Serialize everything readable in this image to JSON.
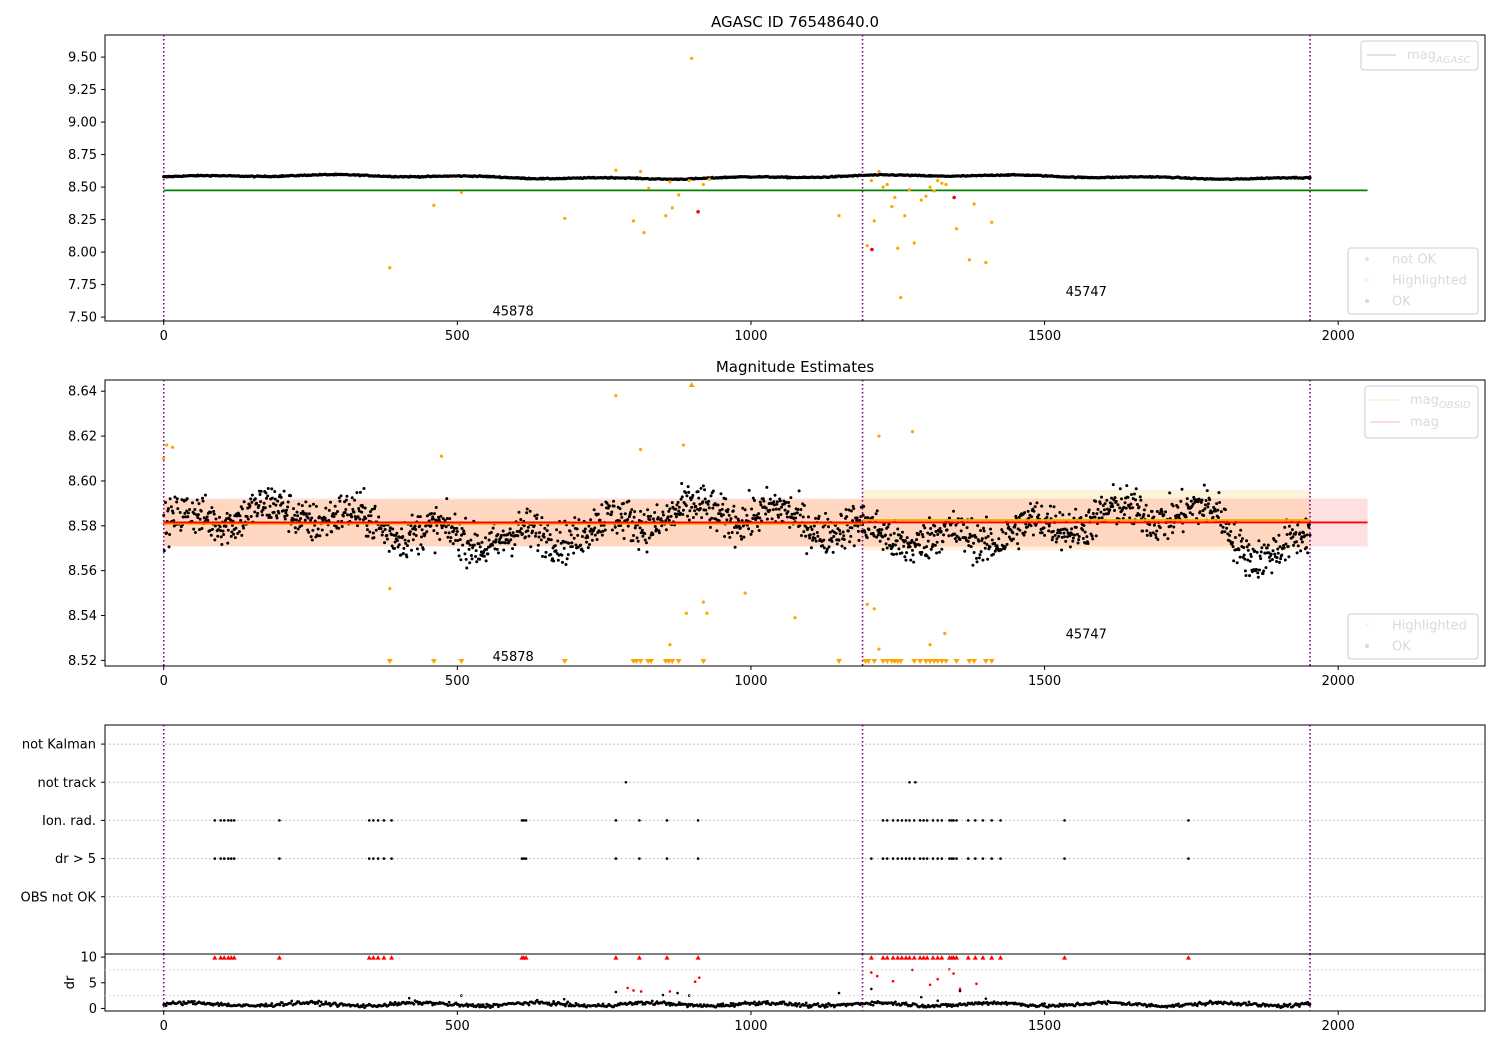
{
  "chart_data": [
    {
      "id": "mag_agasc",
      "type": "scatter",
      "title": "AGASC ID 76548640.0",
      "xlim": [
        -100,
        2250
      ],
      "ylim": [
        7.47,
        9.67
      ],
      "xticks": [
        0,
        500,
        1000,
        1500,
        2000
      ],
      "xtick_labels": [
        "0",
        "500",
        "1000",
        "1500",
        "2000"
      ],
      "yticks": [
        7.5,
        7.75,
        8.0,
        8.25,
        8.5,
        8.75,
        9.0,
        9.25,
        9.5
      ],
      "ytick_labels": [
        "7.50",
        "7.75",
        "8.00",
        "8.25",
        "8.50",
        "8.75",
        "9.00",
        "9.25",
        "9.50"
      ],
      "obsid_boundaries": [
        0,
        1190,
        1952
      ],
      "obsid_labels": [
        {
          "x": 595,
          "y": 7.55,
          "text": "45878"
        },
        {
          "x": 1571,
          "y": 7.7,
          "text": "45747"
        }
      ],
      "mag_agasc": {
        "value": 8.475,
        "x": [
          0,
          2050
        ],
        "color": "#008000",
        "label": "mag",
        "label_sub": "AGASC"
      },
      "legend_upper": [
        {
          "label": "mag",
          "sub": "AGASC",
          "color": "#008000"
        }
      ],
      "legend_lower": [
        {
          "label": "not OK",
          "color": "#ff0000"
        },
        {
          "label": "Highlighted",
          "color": "#ffa500"
        },
        {
          "label": "OK",
          "color": "#000000"
        }
      ],
      "ok_series": {
        "mean": 8.578,
        "noise": 0.01,
        "color": "#000000"
      },
      "highlighted": [
        [
          385,
          7.88
        ],
        [
          460,
          8.36
        ],
        [
          507,
          8.46
        ],
        [
          683,
          8.26
        ],
        [
          770,
          8.63
        ],
        [
          800,
          8.24
        ],
        [
          812,
          8.62
        ],
        [
          818,
          8.15
        ],
        [
          826,
          8.49
        ],
        [
          855,
          8.28
        ],
        [
          862,
          8.54
        ],
        [
          866,
          8.34
        ],
        [
          877,
          8.44
        ],
        [
          895,
          8.55
        ],
        [
          899,
          9.49
        ],
        [
          919,
          8.52
        ],
        [
          929,
          8.56
        ],
        [
          1150,
          8.28
        ],
        [
          1198,
          8.05
        ],
        [
          1205,
          8.55
        ],
        [
          1210,
          8.24
        ],
        [
          1218,
          8.62
        ],
        [
          1225,
          8.5
        ],
        [
          1232,
          8.52
        ],
        [
          1240,
          8.35
        ],
        [
          1245,
          8.42
        ],
        [
          1250,
          8.03
        ],
        [
          1255,
          7.65
        ],
        [
          1262,
          8.28
        ],
        [
          1270,
          8.48
        ],
        [
          1278,
          8.07
        ],
        [
          1290,
          8.4
        ],
        [
          1298,
          8.43
        ],
        [
          1305,
          8.5
        ],
        [
          1312,
          8.47
        ],
        [
          1318,
          8.55
        ],
        [
          1325,
          8.53
        ],
        [
          1332,
          8.52
        ],
        [
          1350,
          8.18
        ],
        [
          1372,
          7.94
        ],
        [
          1380,
          8.37
        ],
        [
          1400,
          7.92
        ],
        [
          1410,
          8.23
        ]
      ],
      "not_ok": [
        [
          910,
          8.31
        ],
        [
          1206,
          8.02
        ],
        [
          1346,
          8.42
        ]
      ]
    },
    {
      "id": "mag_estimates",
      "type": "scatter",
      "title": "Magnitude Estimates",
      "xlim": [
        -100,
        2250
      ],
      "ylim": [
        8.5175,
        8.645
      ],
      "xticks": [
        0,
        500,
        1000,
        1500,
        2000
      ],
      "xtick_labels": [
        "0",
        "500",
        "1000",
        "1500",
        "2000"
      ],
      "yticks": [
        8.52,
        8.54,
        8.56,
        8.58,
        8.6,
        8.62,
        8.64
      ],
      "ytick_labels": [
        "8.52",
        "8.54",
        "8.56",
        "8.58",
        "8.60",
        "8.62",
        "8.64"
      ],
      "obsid_boundaries": [
        0,
        1190,
        1952
      ],
      "obsid_labels": [
        {
          "x": 595,
          "y": 8.522,
          "text": "45878"
        },
        {
          "x": 1571,
          "y": 8.532,
          "text": "45747"
        }
      ],
      "mag": {
        "value": 8.5815,
        "band": [
          8.5708,
          8.5922
        ],
        "x": [
          0,
          2050
        ],
        "color": "#ff0000",
        "label": "mag"
      },
      "mag_obsid": [
        {
          "x": [
            0,
            1190
          ],
          "value": 8.581,
          "band": [
            8.5708,
            8.5915
          ]
        },
        {
          "x": [
            1190,
            1952
          ],
          "value": 8.5825,
          "band": [
            8.569,
            8.596
          ]
        }
      ],
      "legend_upper": [
        {
          "label": "mag",
          "sub": "OBSID",
          "color": "#ffa500"
        },
        {
          "label": "mag",
          "sub": "",
          "color": "#ff0000"
        }
      ],
      "legend_lower": [
        {
          "label": "Highlighted",
          "color": "#ffa500"
        },
        {
          "label": "OK",
          "color": "#000000"
        }
      ],
      "ok_series": {
        "mean": 8.58,
        "noise": 0.009,
        "color": "#000000"
      },
      "highlighted": [
        [
          0,
          8.61
        ],
        [
          5,
          8.616
        ],
        [
          15,
          8.615
        ],
        [
          385,
          8.552
        ],
        [
          473,
          8.611
        ],
        [
          770,
          8.638
        ],
        [
          812,
          8.614
        ],
        [
          862,
          8.527
        ],
        [
          885,
          8.616
        ],
        [
          890,
          8.541
        ],
        [
          919,
          8.546
        ],
        [
          925,
          8.541
        ],
        [
          990,
          8.55
        ],
        [
          1075,
          8.539
        ],
        [
          1198,
          8.545
        ],
        [
          1210,
          8.543
        ],
        [
          1218,
          8.62
        ],
        [
          1218,
          8.525
        ],
        [
          1275,
          8.622
        ],
        [
          1305,
          8.527
        ],
        [
          1330,
          8.532
        ]
      ],
      "below_markers": [
        385,
        460,
        507,
        683,
        800,
        805,
        812,
        825,
        830,
        855,
        860,
        866,
        877,
        919,
        1150,
        1195,
        1200,
        1210,
        1225,
        1232,
        1240,
        1245,
        1250,
        1255,
        1278,
        1288,
        1298,
        1305,
        1312,
        1318,
        1325,
        1332,
        1350,
        1372,
        1380,
        1400,
        1410
      ],
      "above_markers": [
        899
      ]
    },
    {
      "id": "flags",
      "type": "scatter",
      "xlim": [
        -100,
        2250
      ],
      "ylim": [
        -0.5,
        5.5
      ],
      "categories": [
        "OBS not OK",
        "dr > 5",
        "Ion. rad.",
        "not track",
        "not Kalman"
      ],
      "category_values": [
        1,
        2,
        3,
        4,
        5
      ],
      "obsid_boundaries": [
        0,
        1190,
        1952
      ],
      "flags": {
        "dr_gt_5": [
          87,
          97,
          103,
          110,
          115,
          120,
          197,
          350,
          357,
          365,
          375,
          388,
          610,
          613,
          617,
          770,
          810,
          857,
          910,
          1205,
          1225,
          1232,
          1242,
          1250,
          1257,
          1264,
          1270,
          1278,
          1288,
          1294,
          1300,
          1310,
          1318,
          1325,
          1338,
          1342,
          1345,
          1350,
          1370,
          1382,
          1395,
          1410,
          1425,
          1534,
          1745
        ],
        "ion_rad": [
          87,
          97,
          103,
          110,
          115,
          120,
          197,
          350,
          357,
          365,
          375,
          388,
          610,
          613,
          617,
          770,
          810,
          857,
          910,
          1225,
          1232,
          1242,
          1250,
          1257,
          1264,
          1270,
          1278,
          1288,
          1294,
          1300,
          1310,
          1318,
          1325,
          1338,
          1342,
          1345,
          1350,
          1370,
          1382,
          1395,
          1410,
          1425,
          1534,
          1745
        ],
        "not_track": [
          787,
          1270,
          1280
        ],
        "not_kalman": [],
        "obs_not_ok": []
      }
    },
    {
      "id": "dr",
      "type": "scatter",
      "ylabel": "dr",
      "xlim": [
        -100,
        2250
      ],
      "ylim": [
        -0.5,
        10.6
      ],
      "xticks": [
        0,
        500,
        1000,
        1500,
        2000
      ],
      "xtick_labels": [
        "0",
        "500",
        "1000",
        "1500",
        "2000"
      ],
      "yticks": [
        0,
        5,
        10
      ],
      "ytick_labels": [
        "0",
        "5",
        "10"
      ],
      "obsid_boundaries": [
        0,
        1190,
        1952
      ],
      "clipped_at": 10,
      "dr_series": {
        "mean": 0.8,
        "noise": 0.35,
        "color": "#000000"
      },
      "outliers_black": [
        [
          418,
          2
        ],
        [
          507,
          2.5
        ],
        [
          682,
          1.8
        ],
        [
          770,
          3.2
        ],
        [
          850,
          2.6
        ],
        [
          875,
          3
        ],
        [
          895,
          2.5
        ],
        [
          1150,
          3
        ],
        [
          1205,
          3.8
        ],
        [
          1290,
          2.2
        ],
        [
          1318,
          1.5
        ],
        [
          1356,
          3.4
        ],
        [
          1400,
          1.9
        ]
      ],
      "clipped_red": [
        87,
        97,
        103,
        110,
        115,
        120,
        197,
        350,
        357,
        365,
        375,
        388,
        610,
        613,
        617,
        770,
        810,
        857,
        910,
        1205,
        1225,
        1232,
        1242,
        1250,
        1257,
        1264,
        1270,
        1278,
        1288,
        1294,
        1300,
        1310,
        1318,
        1325,
        1338,
        1342,
        1345,
        1350,
        1370,
        1382,
        1395,
        1410,
        1425,
        1534,
        1745
      ],
      "red_mid": [
        [
          790,
          4
        ],
        [
          800,
          3.5
        ],
        [
          813,
          3.3
        ],
        [
          862,
          3.3
        ],
        [
          905,
          5.2
        ],
        [
          912,
          6
        ],
        [
          1205,
          7
        ],
        [
          1215,
          6.3
        ],
        [
          1242,
          5.3
        ],
        [
          1275,
          7.5
        ],
        [
          1305,
          4.6
        ],
        [
          1318,
          5.7
        ],
        [
          1338,
          7.6
        ],
        [
          1345,
          6.8
        ],
        [
          1356,
          3.8
        ],
        [
          1384,
          4.8
        ]
      ]
    }
  ]
}
